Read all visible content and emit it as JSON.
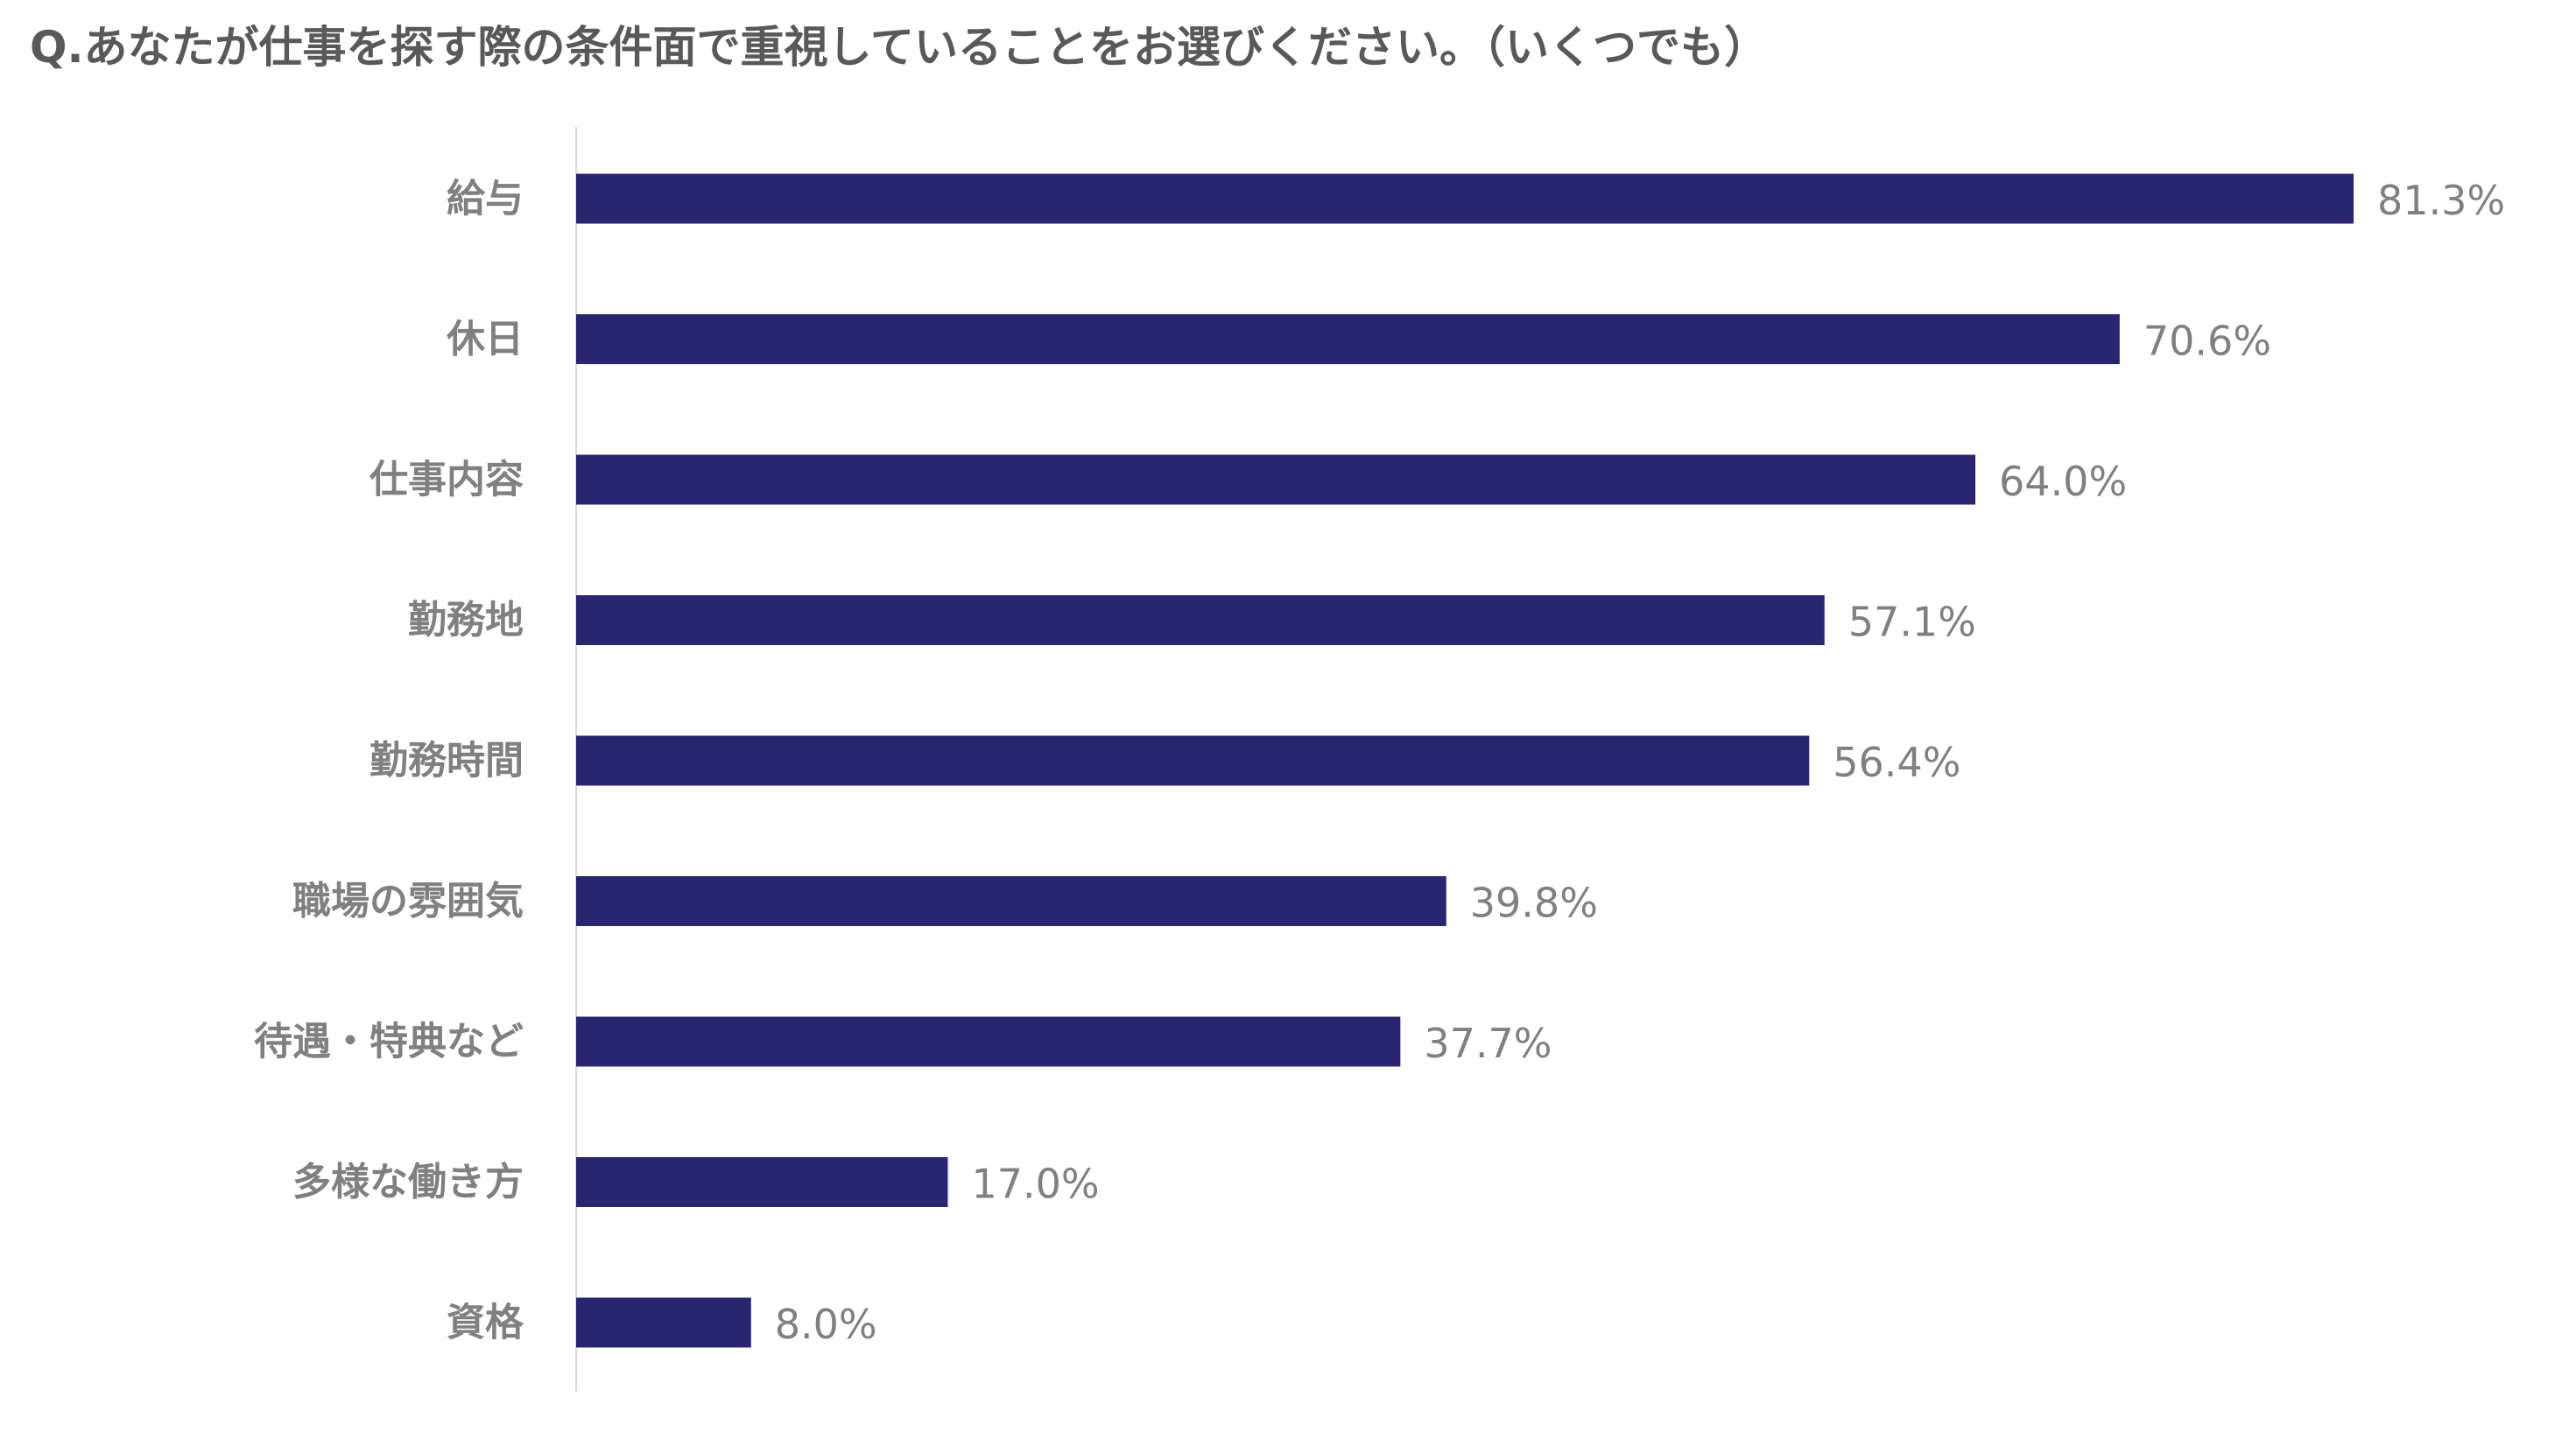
{
  "chart_data": {
    "type": "bar",
    "orientation": "horizontal",
    "title": "Q.あなたが仕事を探す際の条件面で重視していることをお選びください。（いくつでも）",
    "categories": [
      "給与",
      "休日",
      "仕事内容",
      "勤務地",
      "勤務時間",
      "職場の雰囲気",
      "待遇・特典など",
      "多様な働き方",
      "資格"
    ],
    "values": [
      81.3,
      70.6,
      64.0,
      57.1,
      56.4,
      39.8,
      37.7,
      17.0,
      8.0
    ],
    "value_labels": [
      "81.3%",
      "70.6%",
      "64.0%",
      "57.1%",
      "56.4%",
      "39.8%",
      "37.7%",
      "17.0%",
      "8.0%"
    ],
    "unit": "%",
    "xlim": [
      0,
      81.3
    ],
    "bar_color": "#282670",
    "label_color": "#808080",
    "axis_color": "#d9d9d9",
    "grid": false,
    "legend": "none"
  }
}
